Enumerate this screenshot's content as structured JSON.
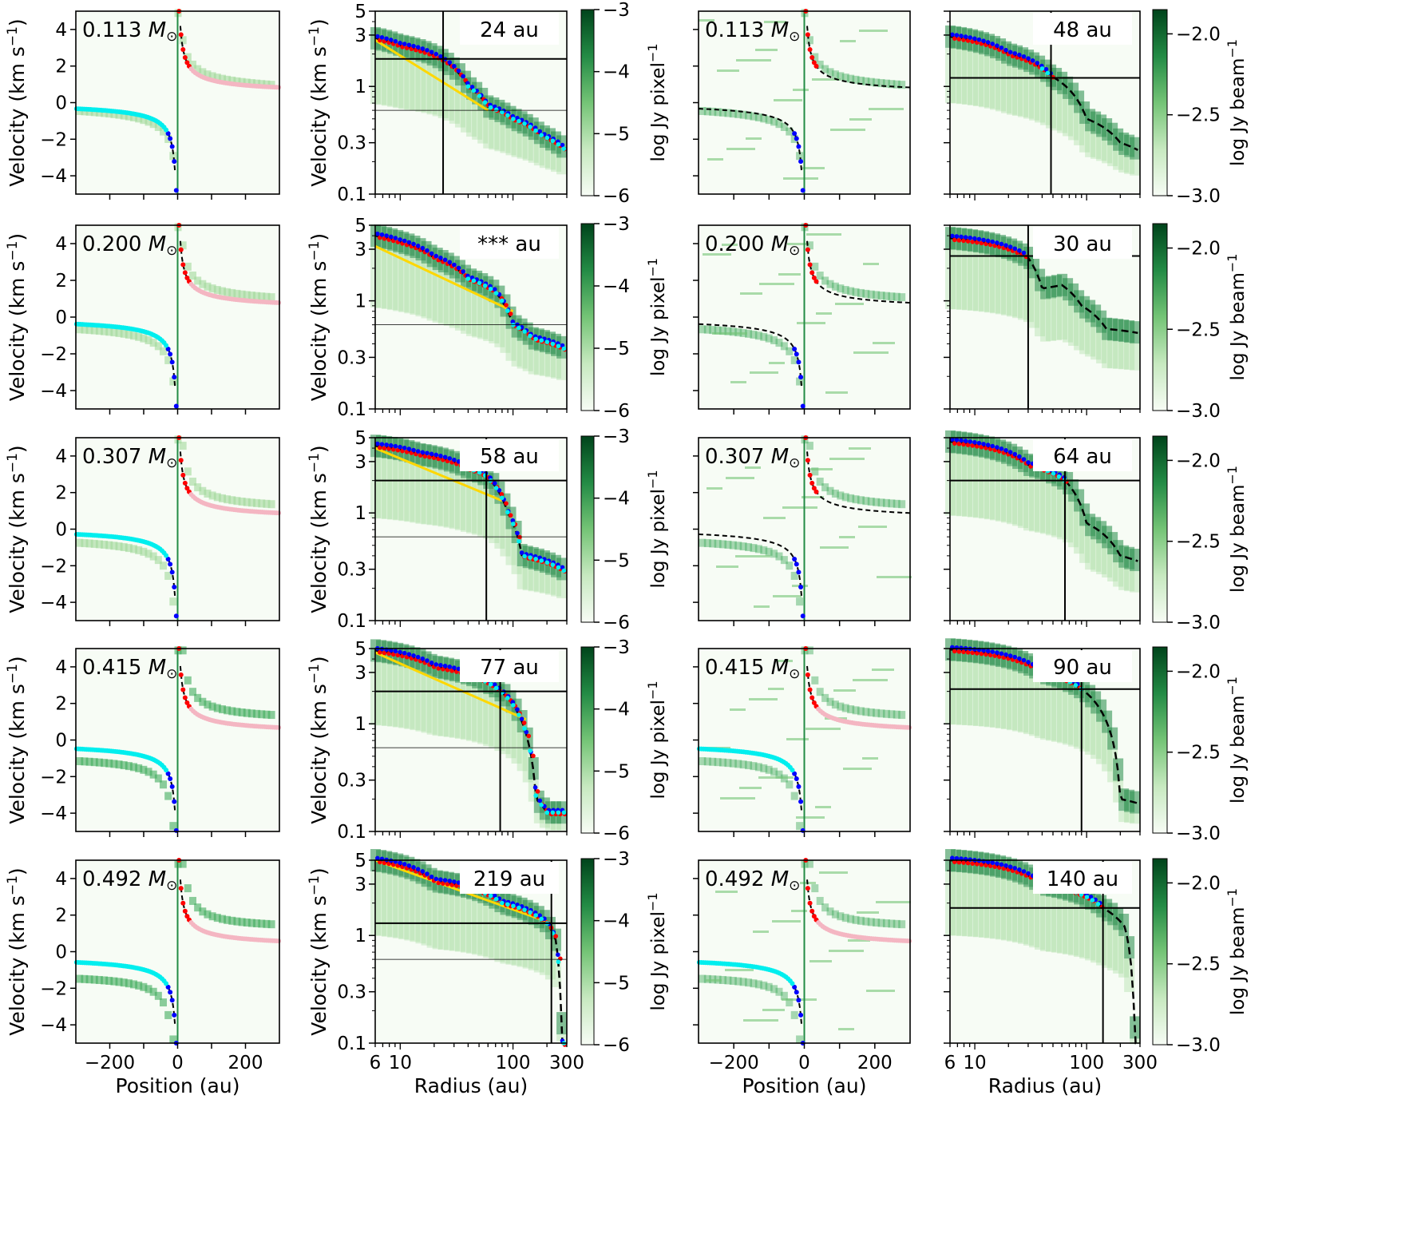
{
  "figure": {
    "rows": [
      {
        "mass_value": "0.113",
        "model_radius": "24 au",
        "obs_radius": "48 au"
      },
      {
        "mass_value": "0.200",
        "model_radius": "*** au",
        "obs_radius": "30 au"
      },
      {
        "mass_value": "0.307",
        "model_radius": "58 au",
        "obs_radius": "64 au"
      },
      {
        "mass_value": "0.415",
        "model_radius": "77 au",
        "obs_radius": "90 au"
      },
      {
        "mass_value": "0.492",
        "model_radius": "219 au",
        "obs_radius": "140 au"
      }
    ],
    "mass_unit_symbol": "M",
    "mass_unit_subscript": "⊙",
    "velocity_ylabel": "Velocity (km s",
    "velocity_ylabel_sup": "−1",
    "velocity_ylabel_close": ")",
    "position_xlabel": "Position (au)",
    "radius_xlabel": "Radius (au)",
    "cbar_model_label": "log Jy pixel",
    "cbar_model_sup": "−1",
    "cbar_obs_label": "log Jy beam",
    "cbar_obs_sup": "−1",
    "position_ticks": [
      "−200",
      "0",
      "200"
    ],
    "velocity_linear_ticks": [
      "4",
      "2",
      "0",
      "−2",
      "−4"
    ],
    "velocity_log_ticks": [
      "5",
      "3",
      "1",
      "0.3",
      "0.1"
    ],
    "radius_ticks": [
      "6",
      "10",
      "100",
      "300"
    ],
    "cbar_model_ticks": [
      "−3",
      "−4",
      "−5",
      "−6"
    ],
    "cbar_obs_ticks": [
      "−2.0",
      "−2.5",
      "−3.0"
    ]
  },
  "chart_data": {
    "type": "heatmap",
    "description_of_panels": "5 rows x 4 panels: model PV diagram (linear), model rotation curve (log-log), observed PV diagram (linear), observed rotation curve (log-log)",
    "pv_axes": {
      "xlim": [
        -300,
        300
      ],
      "ylim": [
        -5,
        5
      ],
      "xlabel": "Position (au)",
      "ylabel": "Velocity (km s−1)"
    },
    "rc_axes": {
      "xlim": [
        6,
        300
      ],
      "ylim": [
        0.1,
        5
      ],
      "xscale": "log",
      "yscale": "log",
      "xlabel": "Radius (au)",
      "ylabel": "Velocity (km s−1)"
    },
    "colorbars": {
      "model": {
        "range": [
          -6,
          -3
        ],
        "label": "log Jy pixel−1"
      },
      "obs": {
        "range": [
          -3.0,
          -1.85
        ],
        "label": "log Jy beam−1"
      }
    },
    "colors": {
      "cmap_low": "#f7fcf5",
      "cmap_mid": "#74c476",
      "cmap_high": "#00441b",
      "red": "#ff0000",
      "blue": "#0000ff",
      "cyan": "#00eeee",
      "pink": "#f4b6c2",
      "yellow": "#ffd700",
      "model_line": "#000000"
    },
    "rows": [
      {
        "mass": 0.113,
        "pv_vsys": 0.25,
        "model_radius_au": 24,
        "model_vline_r": 24,
        "model_hline_v": 1.8,
        "model_thin_hline_v": 0.6,
        "rc_model": [
          [
            6,
            2.8
          ],
          [
            10,
            2.4
          ],
          [
            24,
            1.75
          ],
          [
            40,
            1.0
          ],
          [
            60,
            0.65
          ],
          [
            100,
            0.5
          ],
          [
            180,
            0.35
          ],
          [
            300,
            0.25
          ]
        ],
        "rc_fit": [
          [
            6,
            2.7
          ],
          [
            24,
            1.8
          ],
          [
            60,
            0.6
          ]
        ],
        "obs_radius_au": 48,
        "obs_vline_r": 48,
        "obs_hline_v": 1.2,
        "rc_obs": [
          [
            6,
            2.9
          ],
          [
            20,
            2.0
          ],
          [
            48,
            1.25
          ],
          [
            100,
            0.5
          ],
          [
            200,
            0.3
          ],
          [
            300,
            0.25
          ]
        ]
      },
      {
        "mass": 0.2,
        "pv_vsys": 0.2,
        "model_radius_au": null,
        "model_vline_r": null,
        "model_hline_v": null,
        "model_thin_hline_v": 0.6,
        "rc_model": [
          [
            6,
            4.0
          ],
          [
            10,
            3.5
          ],
          [
            20,
            2.5
          ],
          [
            40,
            1.6
          ],
          [
            70,
            1.2
          ],
          [
            100,
            0.6
          ],
          [
            150,
            0.45
          ],
          [
            300,
            0.35
          ]
        ],
        "rc_fit": [
          [
            6,
            3.2
          ],
          [
            30,
            1.8
          ],
          [
            100,
            0.8
          ]
        ],
        "obs_radius_au": 30,
        "obs_vline_r": 30,
        "obs_hline_v": 2.6,
        "rc_obs": [
          [
            6,
            3.8
          ],
          [
            30,
            2.5
          ],
          [
            40,
            1.3
          ],
          [
            60,
            1.4
          ],
          [
            90,
            0.9
          ],
          [
            150,
            0.55
          ],
          [
            300,
            0.5
          ]
        ]
      },
      {
        "mass": 0.307,
        "pv_vsys": 0.3,
        "model_radius_au": 58,
        "model_vline_r": 58,
        "model_hline_v": 2.0,
        "model_thin_hline_v": 0.6,
        "rc_model": [
          [
            6,
            4.2
          ],
          [
            15,
            3.5
          ],
          [
            40,
            2.6
          ],
          [
            58,
            2.2
          ],
          [
            90,
            1.0
          ],
          [
            120,
            0.4
          ],
          [
            300,
            0.28
          ]
        ],
        "rc_fit": [
          [
            6,
            4.0
          ],
          [
            58,
            2.0
          ],
          [
            80,
            1.3
          ]
        ],
        "obs_radius_au": 64,
        "obs_vline_r": 64,
        "obs_hline_v": 2.0,
        "rc_obs": [
          [
            6,
            4.6
          ],
          [
            30,
            2.8
          ],
          [
            64,
            2.0
          ],
          [
            100,
            0.8
          ],
          [
            200,
            0.4
          ],
          [
            300,
            0.35
          ]
        ]
      },
      {
        "mass": 0.415,
        "pv_vsys": 0.1,
        "model_radius_au": 77,
        "model_vline_r": 77,
        "model_hline_v": 2.0,
        "model_thin_hline_v": 0.6,
        "rc_model": [
          [
            6,
            4.8
          ],
          [
            20,
            3.4
          ],
          [
            60,
            2.4
          ],
          [
            100,
            1.5
          ],
          [
            140,
            0.6
          ],
          [
            160,
            0.2
          ],
          [
            200,
            0.15
          ]
        ],
        "rc_fit": [
          [
            6,
            4.6
          ],
          [
            77,
            2.1
          ],
          [
            130,
            1.1
          ]
        ],
        "obs_radius_au": 90,
        "obs_vline_r": 90,
        "obs_hline_v": 2.1,
        "rc_obs": [
          [
            6,
            4.9
          ],
          [
            40,
            3.0
          ],
          [
            90,
            2.1
          ],
          [
            130,
            1.4
          ],
          [
            200,
            0.2
          ],
          [
            300,
            0.18
          ]
        ]
      },
      {
        "mass": 0.492,
        "pv_vsys": 0.0,
        "model_radius_au": 219,
        "model_vline_r": 219,
        "model_hline_v": 1.3,
        "model_thin_hline_v": 0.6,
        "rc_model": [
          [
            6,
            5.0
          ],
          [
            20,
            3.2
          ],
          [
            80,
            2.0
          ],
          [
            200,
            1.3
          ],
          [
            240,
            0.9
          ],
          [
            270,
            0.1
          ]
        ],
        "rc_fit": [
          [
            6,
            5.0
          ],
          [
            219,
            1.3
          ]
        ],
        "obs_radius_au": 140,
        "obs_vline_r": 140,
        "obs_hline_v": 1.8,
        "rc_obs": [
          [
            6,
            5.0
          ],
          [
            40,
            3.0
          ],
          [
            140,
            1.8
          ],
          [
            220,
            1.2
          ],
          [
            260,
            0.3
          ],
          [
            270,
            0.1
          ]
        ]
      }
    ]
  }
}
